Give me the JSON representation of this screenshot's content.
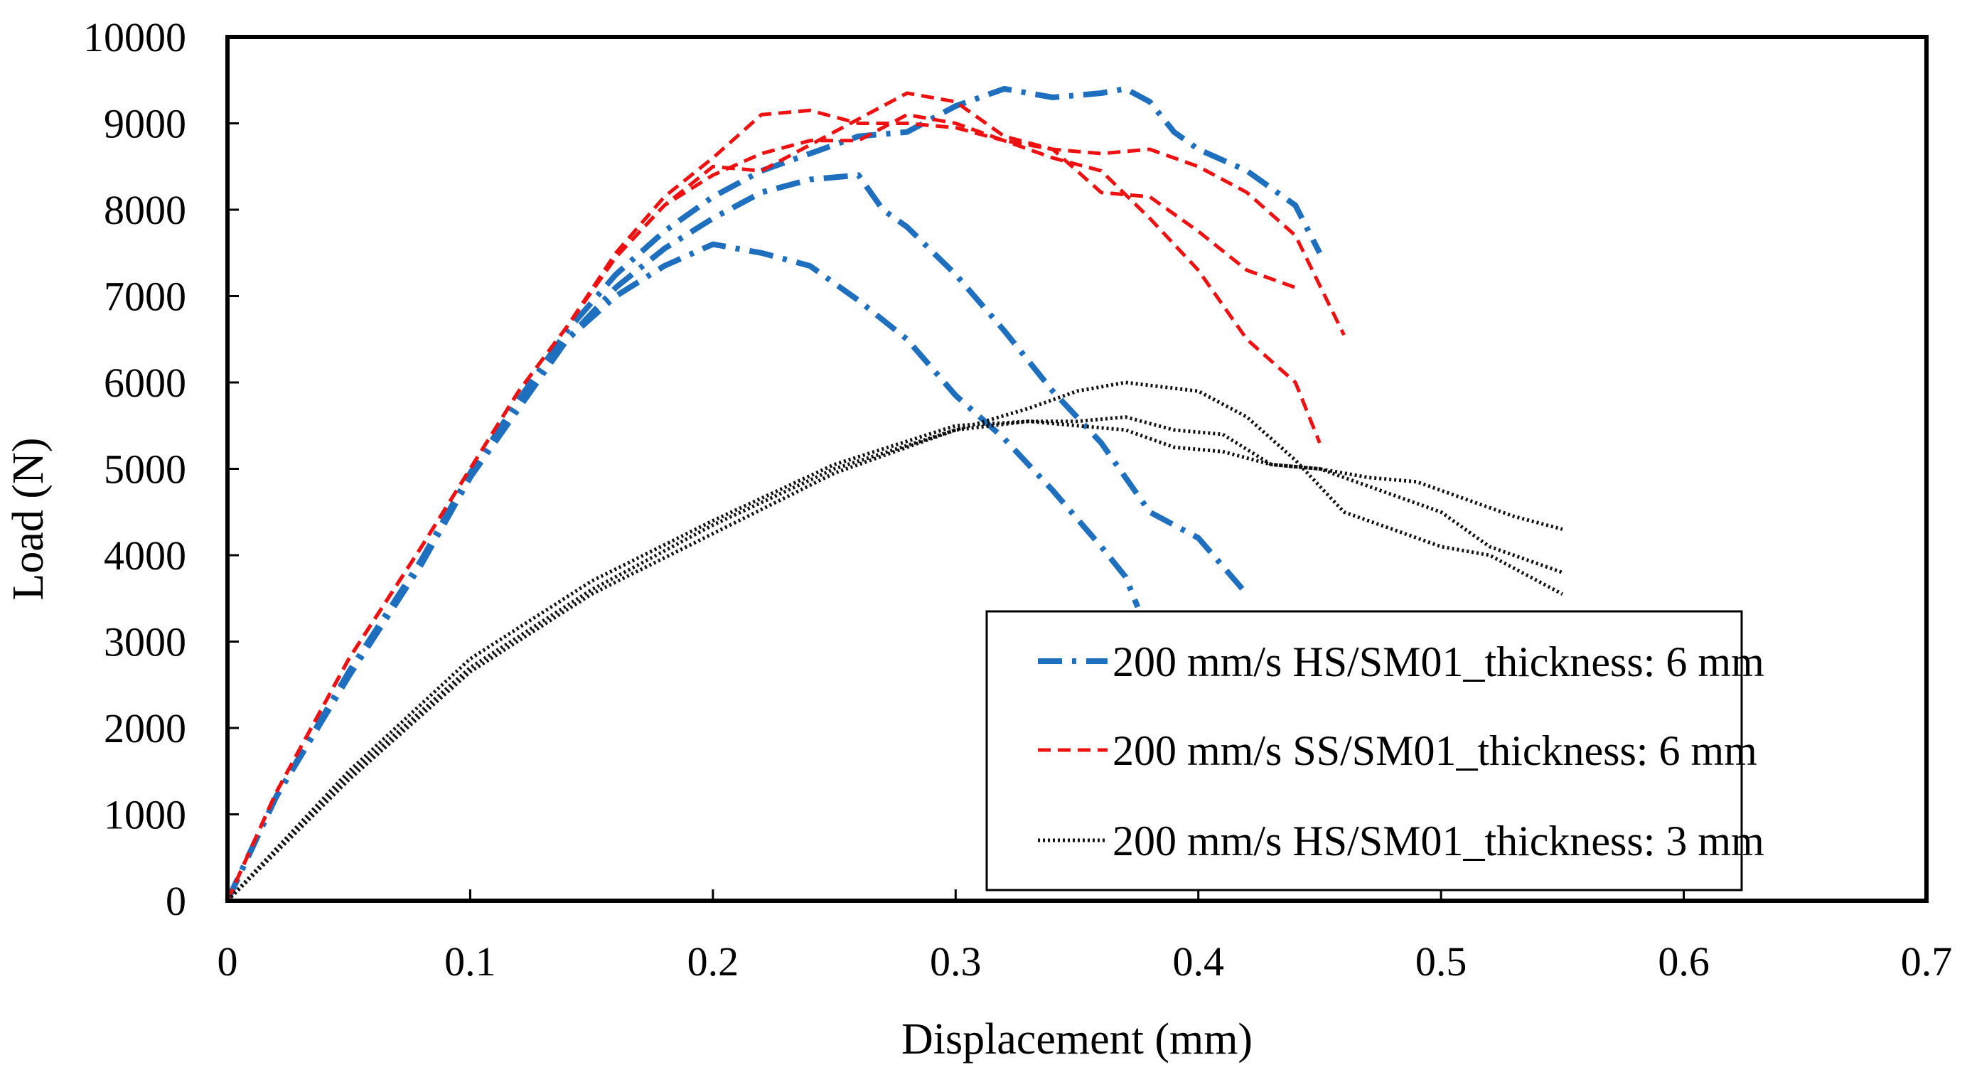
{
  "chart_data": {
    "type": "line",
    "title": "",
    "xlabel": "Displacement (mm)",
    "ylabel": "Load (N)",
    "xlim": [
      0,
      0.7
    ],
    "ylim": [
      0,
      10000
    ],
    "x_ticks": [
      0,
      0.1,
      0.2,
      0.3,
      0.4,
      0.5,
      0.6,
      0.7
    ],
    "x_tick_labels": [
      "0",
      "0.1",
      "0.2",
      "0.3",
      "0.4",
      "0.5",
      "0.6",
      "0.7"
    ],
    "y_ticks": [
      0,
      1000,
      2000,
      3000,
      4000,
      5000,
      6000,
      7000,
      8000,
      9000,
      10000
    ],
    "y_tick_labels": [
      "0",
      "1000",
      "2000",
      "3000",
      "4000",
      "5000",
      "6000",
      "7000",
      "8000",
      "9000",
      "10000"
    ],
    "grid": false,
    "legend_position": "bottom-right",
    "series": [
      {
        "name": "200 mm/s HS/SM01_thickness: 6 mm",
        "color": "#1f6fbf",
        "style": "dash-dot",
        "curves": [
          [
            [
              0,
              0
            ],
            [
              0.02,
              1200
            ],
            [
              0.05,
              2600
            ],
            [
              0.08,
              3900
            ],
            [
              0.1,
              4900
            ],
            [
              0.12,
              5800
            ],
            [
              0.14,
              6500
            ],
            [
              0.16,
              7000
            ],
            [
              0.18,
              7350
            ],
            [
              0.2,
              7600
            ],
            [
              0.22,
              7500
            ],
            [
              0.24,
              7350
            ],
            [
              0.26,
              6950
            ],
            [
              0.28,
              6500
            ],
            [
              0.3,
              5850
            ],
            [
              0.32,
              5350
            ],
            [
              0.34,
              4750
            ],
            [
              0.36,
              4100
            ],
            [
              0.37,
              3750
            ],
            [
              0.375,
              3400
            ]
          ],
          [
            [
              0,
              0
            ],
            [
              0.02,
              1200
            ],
            [
              0.05,
              2600
            ],
            [
              0.08,
              3900
            ],
            [
              0.1,
              4900
            ],
            [
              0.12,
              5700
            ],
            [
              0.14,
              6500
            ],
            [
              0.16,
              7100
            ],
            [
              0.18,
              7550
            ],
            [
              0.2,
              7900
            ],
            [
              0.22,
              8200
            ],
            [
              0.24,
              8350
            ],
            [
              0.26,
              8400
            ],
            [
              0.27,
              8000
            ],
            [
              0.28,
              7800
            ],
            [
              0.3,
              7250
            ],
            [
              0.32,
              6600
            ],
            [
              0.34,
              5900
            ],
            [
              0.36,
              5300
            ],
            [
              0.38,
              4500
            ],
            [
              0.4,
              4200
            ],
            [
              0.42,
              3550
            ]
          ],
          [
            [
              0,
              0
            ],
            [
              0.02,
              1200
            ],
            [
              0.05,
              2650
            ],
            [
              0.08,
              3950
            ],
            [
              0.1,
              4950
            ],
            [
              0.12,
              5800
            ],
            [
              0.14,
              6600
            ],
            [
              0.16,
              7250
            ],
            [
              0.18,
              7750
            ],
            [
              0.2,
              8150
            ],
            [
              0.22,
              8450
            ],
            [
              0.24,
              8650
            ],
            [
              0.26,
              8850
            ],
            [
              0.28,
              8900
            ],
            [
              0.3,
              9200
            ],
            [
              0.32,
              9400
            ],
            [
              0.34,
              9300
            ],
            [
              0.36,
              9350
            ],
            [
              0.37,
              9400
            ],
            [
              0.38,
              9250
            ],
            [
              0.39,
              8900
            ],
            [
              0.4,
              8700
            ],
            [
              0.42,
              8450
            ],
            [
              0.44,
              8050
            ],
            [
              0.45,
              7500
            ]
          ]
        ]
      },
      {
        "name": "200 mm/s SS/SM01_thickness: 6 mm",
        "color": "#ee1111",
        "style": "dashed",
        "curves": [
          [
            [
              0,
              0
            ],
            [
              0.02,
              1250
            ],
            [
              0.05,
              2800
            ],
            [
              0.08,
              4100
            ],
            [
              0.1,
              5000
            ],
            [
              0.12,
              5900
            ],
            [
              0.14,
              6650
            ],
            [
              0.16,
              7500
            ],
            [
              0.18,
              8150
            ],
            [
              0.2,
              8600
            ],
            [
              0.22,
              9100
            ],
            [
              0.24,
              9150
            ],
            [
              0.26,
              9000
            ],
            [
              0.28,
              9000
            ],
            [
              0.3,
              8950
            ],
            [
              0.32,
              8800
            ],
            [
              0.34,
              8600
            ],
            [
              0.36,
              8450
            ],
            [
              0.38,
              7900
            ],
            [
              0.4,
              7300
            ],
            [
              0.42,
              6500
            ],
            [
              0.44,
              6000
            ],
            [
              0.45,
              5300
            ]
          ],
          [
            [
              0,
              0
            ],
            [
              0.02,
              1250
            ],
            [
              0.05,
              2800
            ],
            [
              0.08,
              4100
            ],
            [
              0.1,
              5000
            ],
            [
              0.12,
              5900
            ],
            [
              0.14,
              6650
            ],
            [
              0.16,
              7450
            ],
            [
              0.18,
              8050
            ],
            [
              0.2,
              8500
            ],
            [
              0.22,
              8450
            ],
            [
              0.24,
              8750
            ],
            [
              0.26,
              9050
            ],
            [
              0.28,
              9350
            ],
            [
              0.3,
              9250
            ],
            [
              0.32,
              8850
            ],
            [
              0.34,
              8700
            ],
            [
              0.36,
              8200
            ],
            [
              0.38,
              8150
            ],
            [
              0.4,
              7750
            ],
            [
              0.42,
              7300
            ],
            [
              0.44,
              7100
            ]
          ],
          [
            [
              0,
              0
            ],
            [
              0.02,
              1250
            ],
            [
              0.05,
              2800
            ],
            [
              0.08,
              4100
            ],
            [
              0.1,
              5000
            ],
            [
              0.12,
              5900
            ],
            [
              0.14,
              6650
            ],
            [
              0.16,
              7450
            ],
            [
              0.18,
              8050
            ],
            [
              0.2,
              8400
            ],
            [
              0.22,
              8650
            ],
            [
              0.24,
              8800
            ],
            [
              0.26,
              8800
            ],
            [
              0.28,
              9100
            ],
            [
              0.3,
              9000
            ],
            [
              0.32,
              8800
            ],
            [
              0.34,
              8700
            ],
            [
              0.36,
              8650
            ],
            [
              0.38,
              8700
            ],
            [
              0.4,
              8500
            ],
            [
              0.42,
              8200
            ],
            [
              0.44,
              7700
            ],
            [
              0.46,
              6550
            ]
          ]
        ]
      },
      {
        "name": "200 mm/s HS/SM01_thickness: 3 mm",
        "color": "#111111",
        "style": "dotted",
        "curves": [
          [
            [
              0,
              0
            ],
            [
              0.05,
              1400
            ],
            [
              0.1,
              2650
            ],
            [
              0.15,
              3550
            ],
            [
              0.2,
              4250
            ],
            [
              0.25,
              4950
            ],
            [
              0.3,
              5450
            ],
            [
              0.33,
              5700
            ],
            [
              0.35,
              5900
            ],
            [
              0.37,
              6000
            ],
            [
              0.4,
              5900
            ],
            [
              0.42,
              5600
            ],
            [
              0.44,
              5100
            ],
            [
              0.46,
              4500
            ],
            [
              0.48,
              4300
            ],
            [
              0.5,
              4100
            ],
            [
              0.52,
              4000
            ],
            [
              0.55,
              3550
            ]
          ],
          [
            [
              0,
              0
            ],
            [
              0.05,
              1450
            ],
            [
              0.1,
              2700
            ],
            [
              0.15,
              3600
            ],
            [
              0.2,
              4350
            ],
            [
              0.25,
              5000
            ],
            [
              0.3,
              5450
            ],
            [
              0.33,
              5550
            ],
            [
              0.35,
              5550
            ],
            [
              0.37,
              5600
            ],
            [
              0.39,
              5450
            ],
            [
              0.41,
              5400
            ],
            [
              0.43,
              5050
            ],
            [
              0.45,
              5000
            ],
            [
              0.47,
              4800
            ],
            [
              0.5,
              4500
            ],
            [
              0.52,
              4100
            ],
            [
              0.55,
              3800
            ]
          ],
          [
            [
              0,
              0
            ],
            [
              0.05,
              1500
            ],
            [
              0.1,
              2800
            ],
            [
              0.15,
              3700
            ],
            [
              0.2,
              4400
            ],
            [
              0.25,
              5050
            ],
            [
              0.3,
              5500
            ],
            [
              0.33,
              5550
            ],
            [
              0.35,
              5500
            ],
            [
              0.37,
              5450
            ],
            [
              0.39,
              5250
            ],
            [
              0.41,
              5200
            ],
            [
              0.43,
              5050
            ],
            [
              0.45,
              5000
            ],
            [
              0.47,
              4900
            ],
            [
              0.49,
              4850
            ],
            [
              0.51,
              4650
            ],
            [
              0.53,
              4450
            ],
            [
              0.55,
              4300
            ]
          ]
        ]
      }
    ]
  }
}
